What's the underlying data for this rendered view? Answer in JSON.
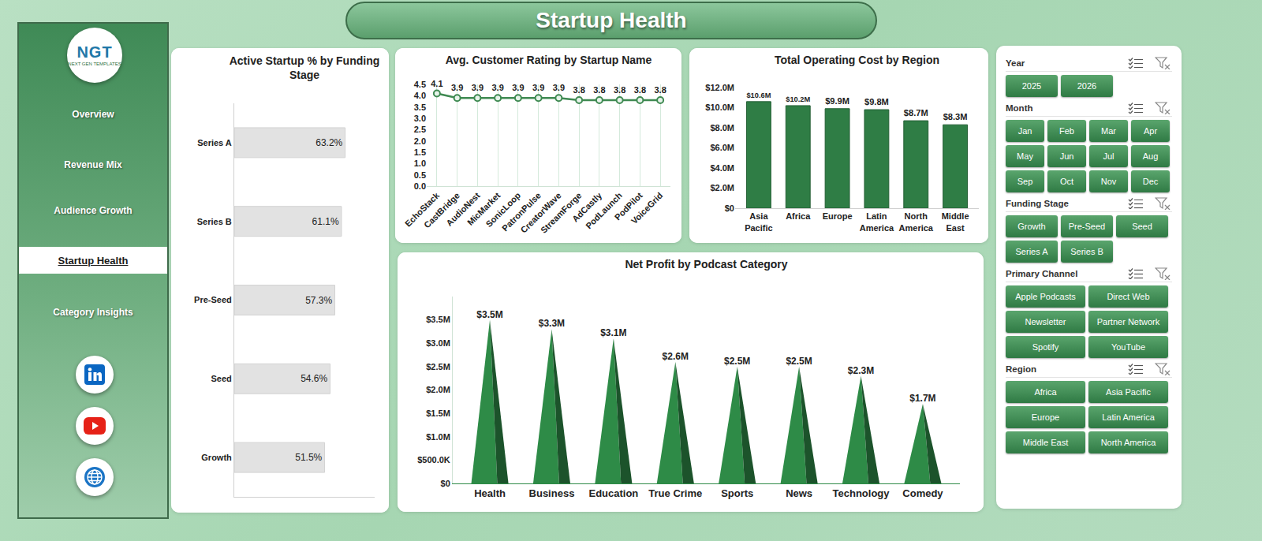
{
  "header": {
    "title": "Startup Health"
  },
  "logo": {
    "text": "NGT",
    "subtitle": "NEXT GEN TEMPLATES"
  },
  "nav": {
    "items": [
      "Overview",
      "Revenue Mix",
      "Audience Growth",
      "Startup Health",
      "Category Insights"
    ],
    "active": "Startup Health"
  },
  "slicers": [
    {
      "title": "Year",
      "items": [
        "2025",
        "2026"
      ]
    },
    {
      "title": "Month",
      "items": [
        "Jan",
        "Feb",
        "Mar",
        "Apr",
        "May",
        "Jun",
        "Jul",
        "Aug",
        "Sep",
        "Oct",
        "Nov",
        "Dec"
      ]
    },
    {
      "title": "Funding Stage",
      "items": [
        "Growth",
        "Pre-Seed",
        "Seed",
        "Series A",
        "Series B"
      ]
    },
    {
      "title": "Primary Channel",
      "items": [
        "Apple Podcasts",
        "Direct Web",
        "Newsletter",
        "Partner Network",
        "Spotify",
        "YouTube"
      ]
    },
    {
      "title": "Region",
      "items": [
        "Africa",
        "Asia Pacific",
        "Europe",
        "Latin America",
        "Middle East",
        "North America"
      ]
    }
  ],
  "chart_data": [
    {
      "type": "bar",
      "title": "Active Startup % by Funding Stage",
      "orientation": "horizontal",
      "categories": [
        "Series A",
        "Series B",
        "Pre-Seed",
        "Seed",
        "Growth"
      ],
      "values": [
        63.2,
        61.1,
        57.3,
        54.6,
        51.5
      ],
      "value_labels": [
        "63.2%",
        "61.1%",
        "57.3%",
        "54.6%",
        "51.5%"
      ],
      "data_labels": true,
      "tick_labels": "y",
      "xlim": [
        0,
        80
      ],
      "color": "#e2e2e2"
    },
    {
      "type": "line",
      "title": "Avg. Customer Rating by Startup Name",
      "categories": [
        "EchoStack",
        "CastBridge",
        "AudioNest",
        "MicMarket",
        "SonicLoop",
        "PatronPulse",
        "CreatorWave",
        "StreamForge",
        "AdCastly",
        "PodLaunch",
        "PodPilot",
        "VoiceGrid"
      ],
      "values": [
        4.1,
        3.9,
        3.9,
        3.9,
        3.9,
        3.9,
        3.9,
        3.8,
        3.8,
        3.8,
        3.8,
        3.8
      ],
      "data_labels": true,
      "marker": "circle",
      "color": "#3f8a52",
      "grid": true,
      "ylim": [
        0,
        4.5
      ],
      "yticks": [
        {
          "value": 0,
          "label": "0.0"
        },
        0.5,
        {
          "value": 1,
          "label": "1.0"
        },
        1.5,
        {
          "value": 2,
          "label": "2.0"
        },
        2.5,
        {
          "value": 3,
          "label": "3.0"
        },
        3.5,
        {
          "value": 4,
          "label": "4.0"
        },
        4.5
      ]
    },
    {
      "type": "bar",
      "title": "Total Operating Cost by Region",
      "categories": [
        "Asia Pacific",
        "Africa",
        "Europe",
        "Latin America",
        "North America",
        "Middle East"
      ],
      "values": [
        10600000,
        10200000,
        9900000,
        9800000,
        8700000,
        8300000
      ],
      "value_labels": [
        "$10.6M",
        "$10.2M",
        "$9.9M",
        "$9.8M",
        "$8.7M",
        "$8.3M"
      ],
      "data_labels": true,
      "color": "#2f7d45",
      "ylim": [
        0,
        12000000
      ],
      "yticks": [
        {
          "value": 0,
          "label": "$0"
        },
        {
          "value": 2000000,
          "label": "$2.0M"
        },
        {
          "value": 4000000,
          "label": "$4.0M"
        },
        {
          "value": 6000000,
          "label": "$6.0M"
        },
        {
          "value": 8000000,
          "label": "$8.0M"
        },
        {
          "value": 10000000,
          "label": "$10.0M"
        },
        {
          "value": 12000000,
          "label": "$12.0M"
        }
      ]
    },
    {
      "type": "bar",
      "marker": "pyramid",
      "title": "Net Profit by Podcast Category",
      "categories": [
        "Health",
        "Business",
        "Education",
        "True Crime",
        "Sports",
        "News",
        "Technology",
        "Comedy"
      ],
      "values": [
        3500000,
        3300000,
        3100000,
        2600000,
        2500000,
        2500000,
        2300000,
        1700000
      ],
      "value_labels": [
        "$3.5M",
        "$3.3M",
        "$3.1M",
        "$2.6M",
        "$2.5M",
        "$2.5M",
        "$2.3M",
        "$1.7M"
      ],
      "data_labels": true,
      "color": "#2e8b47",
      "ylim": [
        0,
        4000000
      ],
      "yticks": [
        {
          "value": 0,
          "label": "$0"
        },
        {
          "value": 500000,
          "label": "$500.0K"
        },
        {
          "value": 1000000,
          "label": "$1.0M"
        },
        {
          "value": 1500000,
          "label": "$1.5M"
        },
        {
          "value": 2000000,
          "label": "$2.0M"
        },
        {
          "value": 2500000,
          "label": "$2.5M"
        },
        {
          "value": 3000000,
          "label": "$3.0M"
        },
        {
          "value": 3500000,
          "label": "$3.5M"
        }
      ]
    }
  ]
}
